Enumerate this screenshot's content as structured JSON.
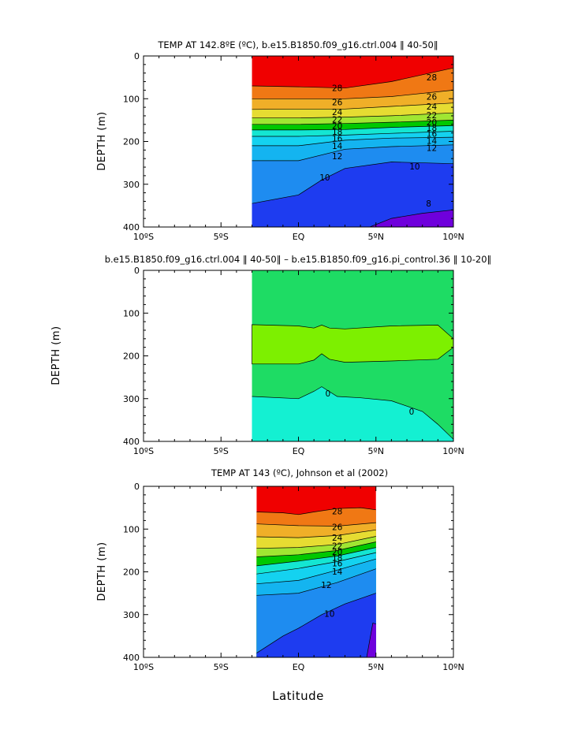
{
  "figure": {
    "xlabel": "Latitude"
  },
  "colors": {
    "t_lt8": "#6f00dc",
    "t_8_10": "#1e3cf0",
    "t_10_12": "#1e8cf0",
    "t_12_14": "#14b4f0",
    "t_14_16": "#14d2f0",
    "t_16_18": "#14e6d2",
    "t_18_20": "#00c800",
    "t_20_22": "#a0e632",
    "t_22_24": "#e6dc32",
    "t_24_26": "#f0af28",
    "t_26_28": "#f07814",
    "t_gt28": "#f00000",
    "diff_pos": "#7df000",
    "diff_zero": "#1edc64",
    "diff_neg": "#14f0d2"
  },
  "chart_data": [
    {
      "type": "contour",
      "title": "TEMP AT 142.8ºE (ºC), b.e15.B1850.f09_g16.ctrl.004 ‖ 40-50‖",
      "ylabel": "DEPTH (m)",
      "xlim": [
        -10,
        10
      ],
      "ylim": [
        400,
        0
      ],
      "xticks": [
        "10ºS",
        "5ºS",
        "EQ",
        "5ºN",
        "10ºN"
      ],
      "xtick_values": [
        -10,
        -5,
        0,
        5,
        10
      ],
      "yticks": [
        "0",
        "100",
        "200",
        "300",
        "400"
      ],
      "ytick_values": [
        0,
        100,
        200,
        300,
        400
      ],
      "data_x_range": [
        -3.0,
        10
      ],
      "isotherms": [
        {
          "level": 28,
          "x": [
            -3,
            0,
            3,
            6,
            10
          ],
          "depth": [
            70,
            72,
            75,
            60,
            28
          ]
        },
        {
          "level": 26,
          "x": [
            -3,
            0,
            3,
            6,
            10
          ],
          "depth": [
            100,
            100,
            100,
            95,
            80
          ]
        },
        {
          "level": 24,
          "x": [
            -3,
            0,
            3,
            6,
            10
          ],
          "depth": [
            125,
            124,
            124,
            118,
            110
          ]
        },
        {
          "level": 22,
          "x": [
            -3,
            0,
            3,
            6,
            10
          ],
          "depth": [
            145,
            145,
            143,
            140,
            133
          ]
        },
        {
          "level": 20,
          "x": [
            -3,
            0,
            3,
            6,
            10
          ],
          "depth": [
            160,
            160,
            158,
            155,
            150
          ]
        },
        {
          "level": 18,
          "x": [
            -3,
            0,
            3,
            6,
            10
          ],
          "depth": [
            173,
            173,
            172,
            167,
            163
          ]
        },
        {
          "level": 16,
          "x": [
            -3,
            0,
            3,
            6,
            10
          ],
          "depth": [
            188,
            188,
            185,
            181,
            176
          ]
        },
        {
          "level": 14,
          "x": [
            -3,
            0,
            3,
            6,
            10
          ],
          "depth": [
            210,
            210,
            197,
            192,
            190
          ]
        },
        {
          "level": 12,
          "x": [
            -3,
            0,
            3,
            6,
            10
          ],
          "depth": [
            245,
            245,
            218,
            212,
            208
          ]
        },
        {
          "level": 10,
          "x": [
            -3,
            0,
            1.5,
            3,
            6,
            10
          ],
          "depth": [
            345,
            325,
            290,
            263,
            248,
            252
          ]
        },
        {
          "level": 8,
          "x": [
            4.6,
            6,
            8,
            10
          ],
          "depth": [
            400,
            380,
            368,
            360
          ]
        }
      ],
      "contour_labels": [
        {
          "text": "28",
          "x": 2.5,
          "depth": 75
        },
        {
          "text": "28",
          "x": 8.6,
          "depth": 50
        },
        {
          "text": "26",
          "x": 2.5,
          "depth": 108
        },
        {
          "text": "26",
          "x": 8.6,
          "depth": 95
        },
        {
          "text": "24",
          "x": 2.5,
          "depth": 131
        },
        {
          "text": "24",
          "x": 8.6,
          "depth": 118
        },
        {
          "text": "22",
          "x": 2.5,
          "depth": 148
        },
        {
          "text": "22",
          "x": 8.6,
          "depth": 138
        },
        {
          "text": "20",
          "x": 2.5,
          "depth": 163
        },
        {
          "text": "20",
          "x": 8.6,
          "depth": 155
        },
        {
          "text": "18",
          "x": 2.5,
          "depth": 177
        },
        {
          "text": "18",
          "x": 8.6,
          "depth": 168
        },
        {
          "text": "16",
          "x": 2.5,
          "depth": 193
        },
        {
          "text": "16",
          "x": 8.6,
          "depth": 182
        },
        {
          "text": "14",
          "x": 2.5,
          "depth": 210
        },
        {
          "text": "14",
          "x": 8.6,
          "depth": 198
        },
        {
          "text": "12",
          "x": 2.5,
          "depth": 234
        },
        {
          "text": "12",
          "x": 8.6,
          "depth": 215
        },
        {
          "text": "10",
          "x": 1.7,
          "depth": 284
        },
        {
          "text": "10",
          "x": 7.5,
          "depth": 258
        },
        {
          "text": "8",
          "x": 8.4,
          "depth": 345
        }
      ]
    },
    {
      "type": "contour",
      "title": "b.e15.B1850.f09_g16.ctrl.004 ‖ 40-50‖ – b.e15.B1850.f09_g16.pi_control.36 ‖ 10-20‖",
      "ylabel": "DEPTH (m)",
      "xlim": [
        -10,
        10
      ],
      "ylim": [
        400,
        0
      ],
      "xticks": [
        "10ºS",
        "5ºS",
        "EQ",
        "5ºN",
        "10ºN"
      ],
      "xtick_values": [
        -10,
        -5,
        0,
        5,
        10
      ],
      "yticks": [
        "0",
        "100",
        "200",
        "300",
        "400"
      ],
      "ytick_values": [
        0,
        100,
        200,
        300,
        400
      ],
      "data_x_range": [
        -3.0,
        10
      ],
      "positive_region": {
        "top": {
          "x": [
            -3,
            0,
            1,
            1.5,
            2,
            3,
            6,
            9,
            10
          ],
          "depth": [
            127,
            130,
            135,
            128,
            135,
            137,
            130,
            128,
            160
          ]
        },
        "bottom": {
          "x": [
            -3,
            0,
            1,
            1.5,
            2,
            3,
            6,
            9,
            10
          ],
          "depth": [
            219,
            219,
            210,
            195,
            208,
            215,
            212,
            208,
            180
          ]
        }
      },
      "negative_boundary": {
        "x": [
          -3,
          0,
          1,
          1.5,
          2.5,
          4,
          6,
          8,
          9,
          10
        ],
        "depth": [
          295,
          300,
          283,
          272,
          295,
          298,
          305,
          330,
          360,
          395
        ]
      },
      "contour_labels": [
        {
          "text": "0",
          "x": 1.9,
          "depth": 288
        },
        {
          "text": "0",
          "x": 7.3,
          "depth": 330
        }
      ]
    },
    {
      "type": "contour",
      "title": "TEMP AT 143 (ºC), Johnson et al (2002)",
      "ylabel": "DEPTH (m)",
      "xlim": [
        -10,
        10
      ],
      "ylim": [
        400,
        0
      ],
      "xticks": [
        "10ºS",
        "5ºS",
        "EQ",
        "5ºN",
        "10ºN"
      ],
      "xtick_values": [
        -10,
        -5,
        0,
        5,
        10
      ],
      "yticks": [
        "0",
        "100",
        "200",
        "300",
        "400"
      ],
      "ytick_values": [
        0,
        100,
        200,
        300,
        400
      ],
      "data_x_range": [
        -2.7,
        5
      ],
      "isotherms": [
        {
          "level": 28,
          "x": [
            -2.7,
            -1,
            0,
            1,
            2.5,
            4,
            5
          ],
          "depth": [
            60,
            62,
            66,
            60,
            52,
            50,
            55
          ]
        },
        {
          "level": 26,
          "x": [
            -2.7,
            0,
            2.5,
            5
          ],
          "depth": [
            88,
            92,
            93,
            85
          ]
        },
        {
          "level": 24,
          "x": [
            -2.7,
            0,
            2.5,
            5
          ],
          "depth": [
            118,
            120,
            115,
            102
          ]
        },
        {
          "level": 22,
          "x": [
            -2.7,
            0,
            2.5,
            5
          ],
          "depth": [
            145,
            143,
            136,
            117
          ]
        },
        {
          "level": 20,
          "x": [
            -2.7,
            0,
            2.5,
            5
          ],
          "depth": [
            165,
            160,
            150,
            130
          ]
        },
        {
          "level": 18,
          "x": [
            -2.7,
            0,
            2.5,
            5
          ],
          "depth": [
            186,
            175,
            163,
            143
          ]
        },
        {
          "level": 16,
          "x": [
            -2.7,
            0,
            2.5,
            5
          ],
          "depth": [
            205,
            192,
            176,
            155
          ]
        },
        {
          "level": 14,
          "x": [
            -2.7,
            0,
            2.5,
            5
          ],
          "depth": [
            228,
            220,
            196,
            170
          ]
        },
        {
          "level": 12,
          "x": [
            -2.7,
            0,
            2.5,
            5
          ],
          "depth": [
            255,
            250,
            225,
            193
          ]
        },
        {
          "level": 10,
          "x": [
            -2.7,
            -1,
            0,
            1.5,
            3,
            5
          ],
          "depth": [
            390,
            350,
            332,
            300,
            275,
            250
          ]
        },
        {
          "level": 8,
          "x": [
            4.4,
            4.8,
            5
          ],
          "depth": [
            400,
            320,
            322
          ]
        }
      ],
      "contour_labels": [
        {
          "text": "28",
          "x": 2.5,
          "depth": 58
        },
        {
          "text": "26",
          "x": 2.5,
          "depth": 95
        },
        {
          "text": "24",
          "x": 2.5,
          "depth": 120
        },
        {
          "text": "22",
          "x": 2.5,
          "depth": 139
        },
        {
          "text": "20",
          "x": 2.5,
          "depth": 153
        },
        {
          "text": "18",
          "x": 2.5,
          "depth": 167
        },
        {
          "text": "16",
          "x": 2.5,
          "depth": 180
        },
        {
          "text": "14",
          "x": 2.5,
          "depth": 199
        },
        {
          "text": "12",
          "x": 1.8,
          "depth": 230
        },
        {
          "text": "10",
          "x": 2.0,
          "depth": 298
        }
      ]
    }
  ]
}
